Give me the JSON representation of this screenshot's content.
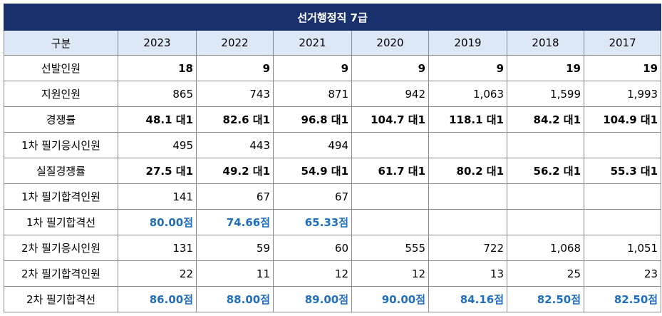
{
  "title": "선거행정직 7급",
  "header": {
    "label": "구분",
    "years": [
      "2023",
      "2022",
      "2021",
      "2020",
      "2019",
      "2018",
      "2017"
    ]
  },
  "rows": [
    {
      "label": "선발인원",
      "style": "bold",
      "values": [
        "18",
        "9",
        "9",
        "9",
        "9",
        "19",
        "19"
      ]
    },
    {
      "label": "지원인원",
      "style": "normal",
      "values": [
        "865",
        "743",
        "871",
        "942",
        "1,063",
        "1,599",
        "1,993"
      ]
    },
    {
      "label": "경쟁률",
      "style": "bold",
      "values": [
        "48.1 대1",
        "82.6 대1",
        "96.8 대1",
        "104.7 대1",
        "118.1 대1",
        "84.2 대1",
        "104.9 대1"
      ]
    },
    {
      "label": "1차 필기응시인원",
      "style": "normal",
      "values": [
        "495",
        "443",
        "494",
        "",
        "",
        "",
        ""
      ]
    },
    {
      "label": "실질경쟁률",
      "style": "bold",
      "values": [
        "27.5 대1",
        "49.2 대1",
        "54.9 대1",
        "61.7 대1",
        "80.2 대1",
        "56.2 대1",
        "55.3 대1"
      ]
    },
    {
      "label": "1차 필기합격인원",
      "style": "normal",
      "values": [
        "141",
        "67",
        "67",
        "",
        "",
        "",
        ""
      ]
    },
    {
      "label": "1차 필기합격선",
      "style": "blue",
      "values": [
        "80.00점",
        "74.66점",
        "65.33점",
        "",
        "",
        "",
        ""
      ]
    },
    {
      "label": "2차 필기응시인원",
      "style": "normal",
      "values": [
        "131",
        "59",
        "60",
        "555",
        "722",
        "1,068",
        "1,051"
      ]
    },
    {
      "label": "2차 필기합격인원",
      "style": "normal",
      "values": [
        "22",
        "11",
        "12",
        "12",
        "13",
        "25",
        "23"
      ]
    },
    {
      "label": "2차 필기합격선",
      "style": "blue",
      "values": [
        "86.00점",
        "88.00점",
        "89.00점",
        "90.00점",
        "84.16점",
        "82.50점",
        "82.50점"
      ]
    }
  ]
}
